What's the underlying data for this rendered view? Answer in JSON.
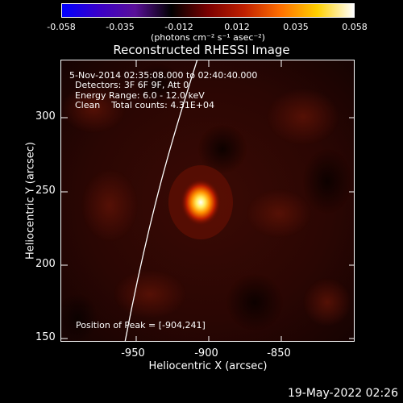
{
  "colorbar": {
    "ticks": [
      "-0.058",
      "-0.035",
      "-0.012",
      "0.012",
      "0.035",
      "0.058"
    ],
    "units": "(photons cm⁻² s⁻¹ asec⁻²)"
  },
  "title": "Reconstructed RHESSI Image",
  "annotations": {
    "time_range": "5-Nov-2014 02:35:08.000 to 02:40:40.000",
    "detectors": "Detectors: 3F 6F 9F, Att 0",
    "energy": "Energy Range: 6.0 - 12.0 keV",
    "clean": "Clean    Total counts: 4.31E+04",
    "peak": "Position of Peak = [-904,241]"
  },
  "axes": {
    "xlabel": "Heliocentric X (arcsec)",
    "ylabel": "Heliocentric Y (arcsec)",
    "xticks": [
      "-950",
      "-900",
      "-850"
    ],
    "yticks": [
      "300",
      "250",
      "200",
      "150"
    ]
  },
  "footer": {
    "date": "19-May-2022 02:26"
  },
  "colors": {
    "colormap": [
      "#0000ff",
      "#3a00c8",
      "#5a1099",
      "#000000",
      "#7a0000",
      "#c02000",
      "#ff7000",
      "#ffd000",
      "#ffffff"
    ]
  }
}
